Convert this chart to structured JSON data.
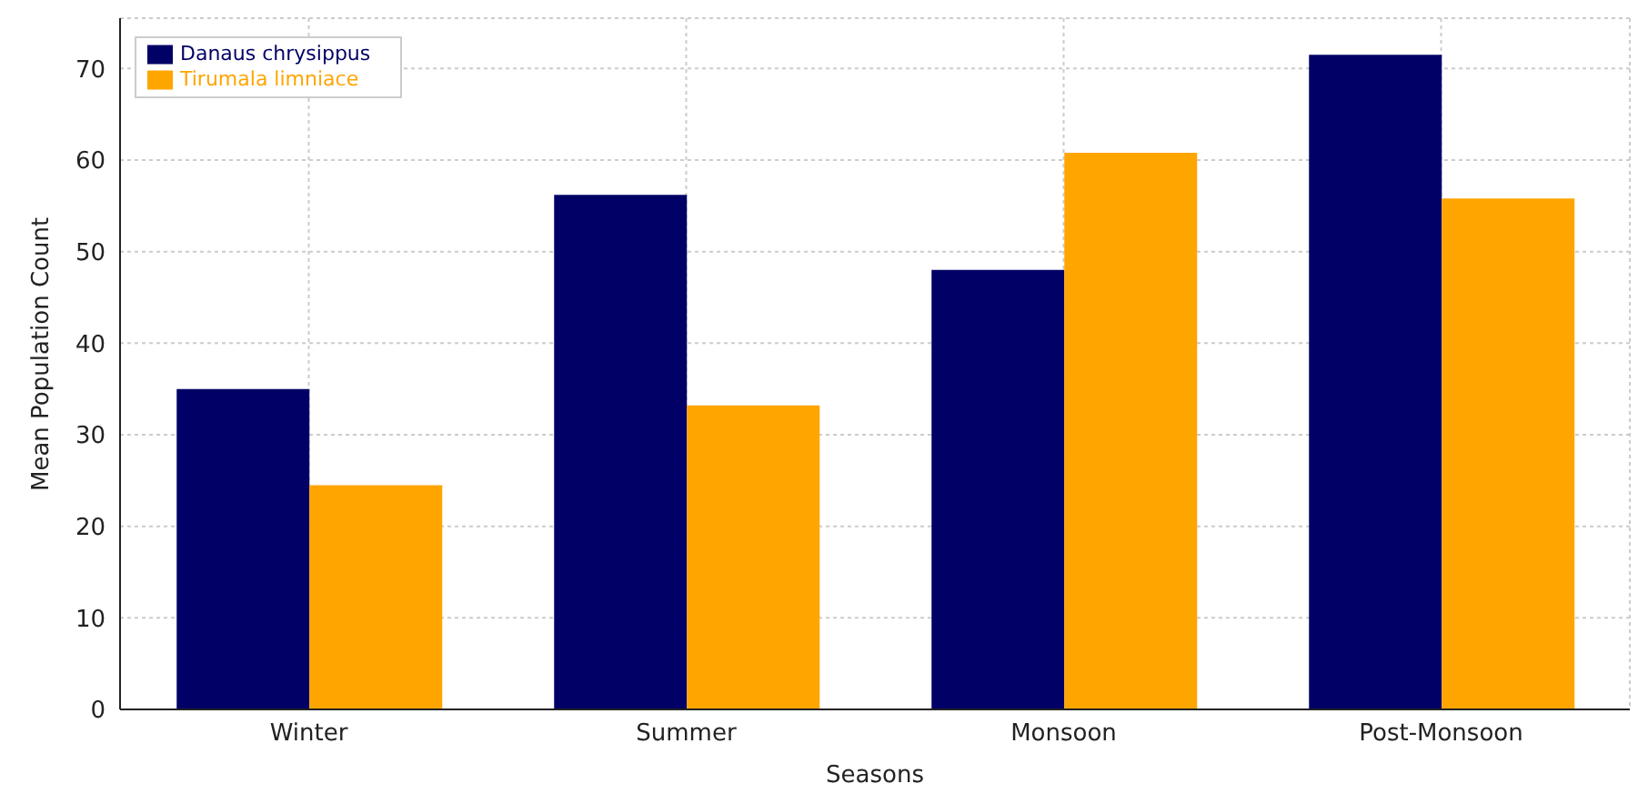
{
  "chart_data": {
    "type": "bar",
    "xlabel": "Seasons",
    "ylabel": "Mean Population Count",
    "categories": [
      "Winter",
      "Summer",
      "Monsoon",
      "Post-Monsoon"
    ],
    "series": [
      {
        "name": "Danaus chrysippus",
        "color": "#000066",
        "values": [
          35,
          56.2,
          48,
          71.5
        ]
      },
      {
        "name": "Tirumala limniace",
        "color": "#ffa500",
        "values": [
          24.5,
          33.2,
          60.8,
          55.8
        ]
      }
    ],
    "ylim": [
      0,
      75.5
    ],
    "yticks": [
      0,
      10,
      20,
      30,
      40,
      50,
      60,
      70
    ],
    "grid": true,
    "legend": "top left"
  }
}
